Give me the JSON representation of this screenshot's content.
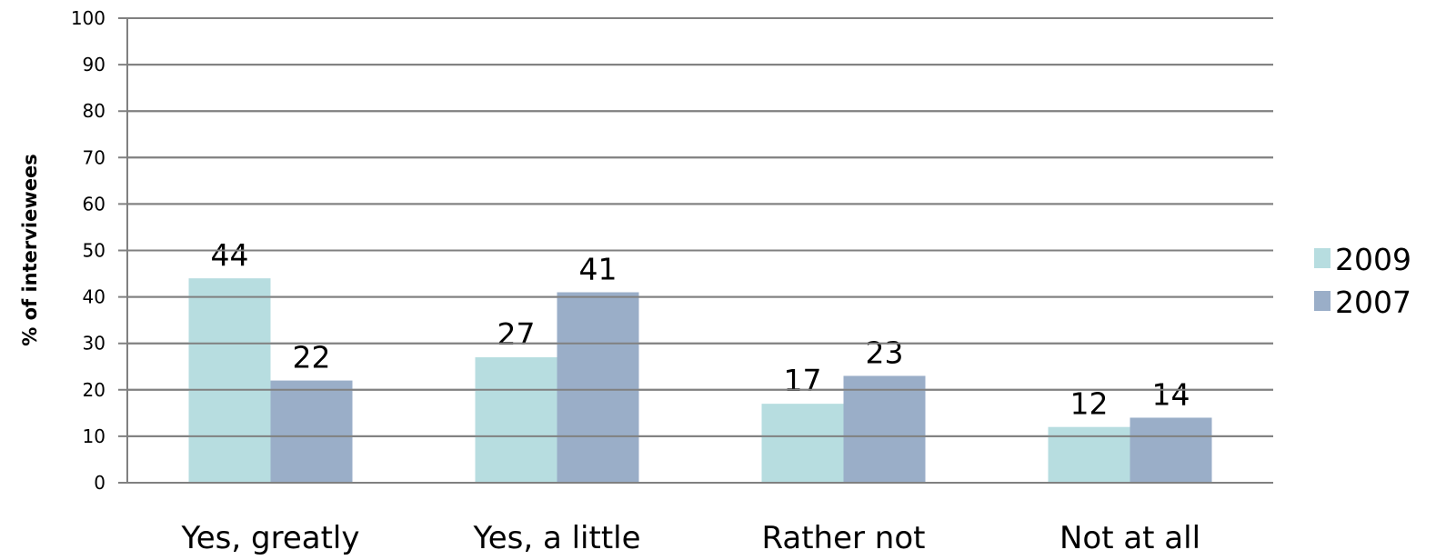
{
  "chart_data": {
    "type": "bar",
    "title": "",
    "xlabel": "",
    "ylabel": "% of interviewees",
    "ylim": [
      0,
      100
    ],
    "yticks": [
      0,
      10,
      20,
      30,
      40,
      50,
      60,
      70,
      80,
      90,
      100
    ],
    "grid": true,
    "legend_position": "right",
    "categories": [
      "Yes, greatly",
      "Yes, a little",
      "Rather not",
      "Not at all"
    ],
    "series": [
      {
        "name": "2009",
        "color": "#b7dde0",
        "values": [
          44,
          27,
          17,
          12
        ]
      },
      {
        "name": "2007",
        "color": "#9aaec8",
        "values": [
          22,
          41,
          23,
          14
        ]
      }
    ]
  }
}
